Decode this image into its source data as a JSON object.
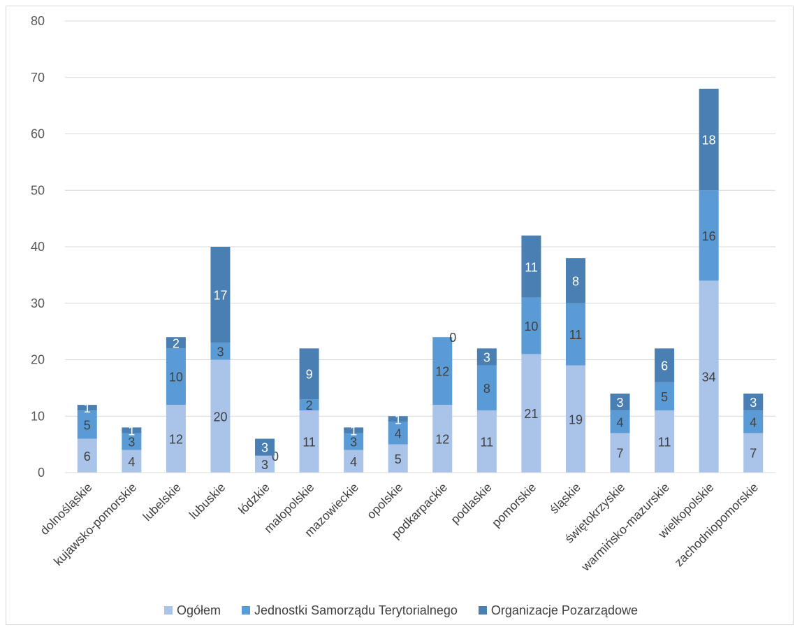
{
  "chart_data": {
    "type": "bar",
    "stacked": true,
    "categories": [
      "dolnośląskie",
      "kujawsko-pomorskie",
      "lubelskie",
      "lubuskie",
      "łódzkie",
      "małopolskie",
      "mazowieckie",
      "opolskie",
      "podkarpackie",
      "podlaskie",
      "pomorskie",
      "śląskie",
      "świętokrzyskie",
      "warmińsko-mazurskie",
      "wielkopolskie",
      "zachodniopomorskie"
    ],
    "series": [
      {
        "name": "Ogółem",
        "color": "#a9c4e8",
        "label_color": "#404040",
        "values": [
          6,
          4,
          12,
          20,
          3,
          11,
          4,
          5,
          12,
          11,
          21,
          19,
          7,
          11,
          34,
          7
        ]
      },
      {
        "name": "Jednostki Samorządu Terytorialnego",
        "color": "#5b9bd5",
        "label_color": "#404040",
        "values": [
          5,
          3,
          10,
          3,
          0,
          2,
          3,
          4,
          12,
          8,
          10,
          11,
          4,
          5,
          16,
          4
        ]
      },
      {
        "name": "Organizacje Pozarządowe",
        "color": "#4a7fb3",
        "label_color": "#ffffff",
        "values": [
          1,
          1,
          2,
          17,
          3,
          9,
          1,
          1,
          0,
          3,
          11,
          8,
          3,
          6,
          18,
          3
        ]
      }
    ],
    "ylim": [
      0,
      80
    ],
    "yticks": [
      0,
      10,
      20,
      30,
      40,
      50,
      60,
      70,
      80
    ],
    "grid": true,
    "legend_position": "bottom",
    "data_labels": true
  }
}
